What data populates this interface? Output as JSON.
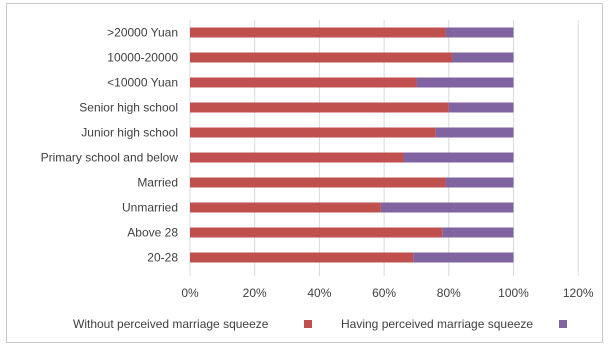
{
  "chart_data": {
    "type": "bar",
    "orientation": "horizontal",
    "stacked": true,
    "percent_stacked": true,
    "categories": [
      ">20000 Yuan",
      "10000-20000",
      "<10000 Yuan",
      "Senior high school",
      "Junior high school",
      "Primary school and below",
      "Married",
      "Unmarried",
      "Above 28",
      "20-28"
    ],
    "series": [
      {
        "name": "Without perceived marriage squeeze",
        "values": [
          79,
          81,
          70,
          80,
          76,
          66,
          79,
          59,
          78,
          69
        ],
        "color": "#c0504d"
      },
      {
        "name": "Having perceived marriage squeeze",
        "values": [
          21,
          19,
          30,
          20,
          24,
          34,
          21,
          41,
          22,
          31
        ],
        "color": "#8064a2"
      }
    ],
    "x_ticks": [
      "0%",
      "20%",
      "40%",
      "60%",
      "80%",
      "100%",
      "120%"
    ],
    "xlim": [
      0,
      120
    ],
    "grid": true,
    "legend_position": "bottom"
  }
}
